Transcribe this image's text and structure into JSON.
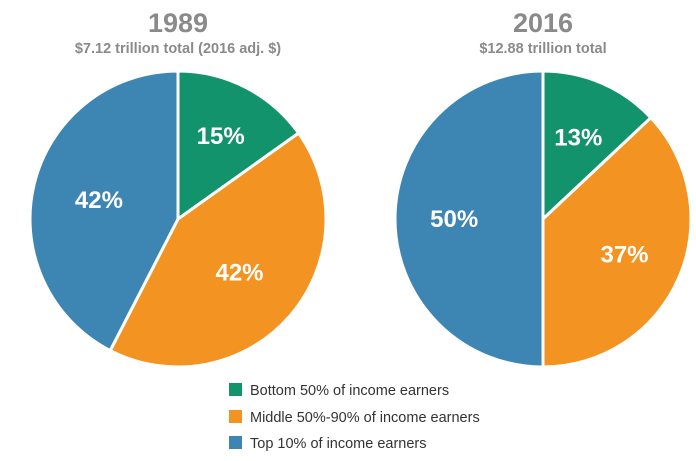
{
  "chart_data": [
    {
      "type": "pie",
      "title": "1989",
      "subtitle": "$7.12 trillion total (2016 adj. $)",
      "categories": [
        "Bottom 50% of income earners",
        "Middle 50%-90% of income earners",
        "Top 10% of income earners"
      ],
      "values": [
        15,
        42,
        42
      ],
      "labels": [
        "15%",
        "42%",
        "42%"
      ],
      "colors": [
        "#12936b",
        "#f39322",
        "#3d86b4"
      ]
    },
    {
      "type": "pie",
      "title": "2016",
      "subtitle": "$12.88 trillion total",
      "categories": [
        "Bottom 50% of income earners",
        "Middle 50%-90% of income earners",
        "Top 10% of income earners"
      ],
      "values": [
        13,
        37,
        50
      ],
      "labels": [
        "13%",
        "37%",
        "50%"
      ],
      "colors": [
        "#12936b",
        "#f39322",
        "#3d86b4"
      ]
    }
  ],
  "legend": {
    "placement": "bottom",
    "items": [
      {
        "label": "Bottom 50% of income earners",
        "color": "#12936b"
      },
      {
        "label": "Middle 50%-90% of income earners",
        "color": "#f39322"
      },
      {
        "label": "Top 10% of income earners",
        "color": "#3d86b4"
      }
    ]
  }
}
